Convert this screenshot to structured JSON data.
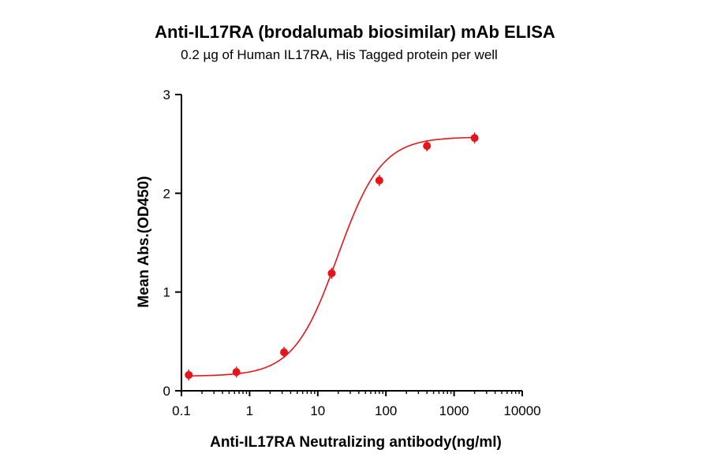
{
  "chart_data": {
    "type": "scatter",
    "title": "Anti-IL17RA (brodalumab biosimilar) mAb ELISA",
    "subtitle": "0.2 µg of Human IL17RA, His Tagged protein per well",
    "xlabel": "Anti-IL17RA Neutralizing antibody(ng/ml)",
    "ylabel": "Mean Abs.(OD450)",
    "xscale": "log",
    "xlim": [
      0.1,
      10000
    ],
    "ylim": [
      0,
      3
    ],
    "xticks": [
      0.1,
      1,
      10,
      100,
      1000,
      10000
    ],
    "xtick_labels": [
      "0.1",
      "1",
      "10",
      "100",
      "1000",
      "10000"
    ],
    "yticks": [
      0,
      1,
      2,
      3
    ],
    "ytick_labels": [
      "0",
      "1",
      "2",
      "3"
    ],
    "grid": false,
    "color": "#e8141b",
    "series": [
      {
        "x": [
          0.128,
          0.64,
          3.2,
          16,
          80,
          400,
          2000
        ],
        "y": [
          0.16,
          0.19,
          0.39,
          1.19,
          2.13,
          2.48,
          2.56
        ],
        "fit": "4PL sigmoid curve"
      }
    ]
  }
}
